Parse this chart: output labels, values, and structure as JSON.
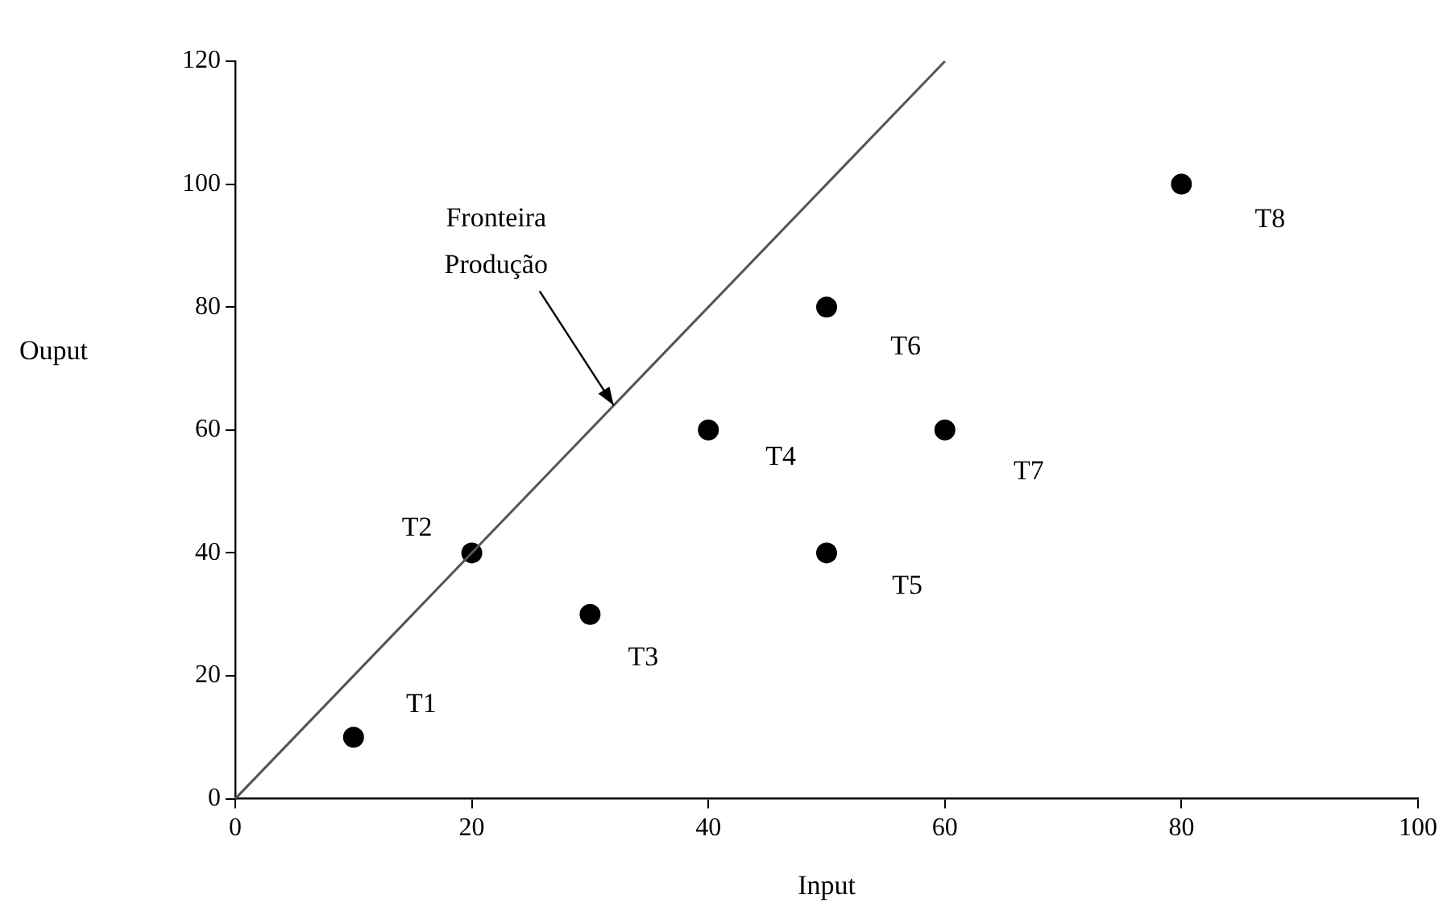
{
  "chart_data": {
    "type": "scatter",
    "xlabel": "Input",
    "ylabel": "Ouput",
    "xlim": [
      0,
      100
    ],
    "xticks": [
      0,
      20,
      40,
      60,
      80,
      100
    ],
    "ylim": [
      0,
      120
    ],
    "yticks": [
      0,
      20,
      40,
      60,
      80,
      100,
      120
    ],
    "grid": false,
    "legend": false,
    "marker": "circle",
    "series": [
      {
        "type": "line",
        "x": [
          0,
          60
        ],
        "values": [
          0,
          120
        ],
        "color": "#555555",
        "marker": "none",
        "line_style": "solid"
      },
      {
        "x": [
          10,
          20,
          30,
          40,
          50,
          50,
          60,
          80
        ],
        "values": [
          10,
          40,
          30,
          60,
          40,
          80,
          60,
          100
        ],
        "color": "#000000"
      }
    ],
    "annotations": [
      {
        "text": "T1",
        "x": 10,
        "y": 10
      },
      {
        "text": "T2",
        "x": 20,
        "y": 40
      },
      {
        "text": "T3",
        "x": 30,
        "y": 30
      },
      {
        "text": "T4",
        "x": 40,
        "y": 60
      },
      {
        "text": "T5",
        "x": 50,
        "y": 40
      },
      {
        "text": "T6",
        "x": 50,
        "y": 80
      },
      {
        "text": "T7",
        "x": 60,
        "y": 60
      },
      {
        "text": "T8",
        "x": 80,
        "y": 100
      },
      {
        "text": "Fronteira\nProdução",
        "x": 32,
        "y": 64
      }
    ]
  }
}
